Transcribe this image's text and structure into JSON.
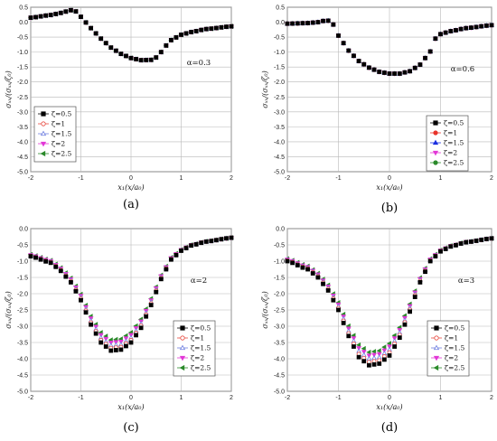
{
  "chart_data": [
    {
      "type": "scatter",
      "panel_label": "(a)",
      "annotation": "α=0.3",
      "xlabel": "x₁(x/a₀)",
      "ylabel": "σₓₓ/(σₓₓ/ζ₀)",
      "xlim": [
        -2,
        2
      ],
      "ylim": [
        -5.0,
        0.5
      ],
      "xticks": [
        "-2",
        "-1",
        "0",
        "1",
        "2"
      ],
      "yticks": [
        "0.5",
        "0.0",
        "-0.5",
        "-1.0",
        "-1.5",
        "-2.0",
        "-2.5",
        "-3.0",
        "-3.5",
        "-4.0",
        "-4.5",
        "-5.0"
      ],
      "grid": true,
      "legend_position": "lower-left",
      "series": [
        {
          "name": "ζ=0.5",
          "color": "#000000",
          "marker": "square",
          "filled": true
        },
        {
          "name": "ζ=1",
          "color": "#e8493f",
          "marker": "circle",
          "filled": false
        },
        {
          "name": "ζ=1.5",
          "color": "#6f7fe0",
          "marker": "triangle-up",
          "filled": false
        },
        {
          "name": "ζ=2",
          "color": "#e236d6",
          "marker": "triangle-down",
          "filled": true
        },
        {
          "name": "ζ=2.5",
          "color": "#2a8a2a",
          "marker": "triangle-left",
          "filled": true
        }
      ],
      "x": [
        -2.0,
        -1.6,
        -1.4,
        -1.2,
        -1.1,
        -1.0,
        -0.8,
        -0.6,
        -0.4,
        -0.2,
        0.0,
        0.2,
        0.4,
        0.5,
        0.6,
        0.7,
        0.8,
        1.0,
        1.2,
        1.5,
        2.0
      ],
      "y": [
        [
          0.15,
          0.24,
          0.31,
          0.4,
          0.36,
          0.18,
          -0.2,
          -0.55,
          -0.85,
          -1.06,
          -1.2,
          -1.27,
          -1.26,
          -1.18,
          -1.0,
          -0.78,
          -0.6,
          -0.42,
          -0.33,
          -0.23,
          -0.14
        ]
      ],
      "series_offsets": [
        0,
        0,
        0,
        0,
        0
      ]
    },
    {
      "type": "scatter",
      "panel_label": "(b)",
      "annotation": "α=0.6",
      "xlabel": "x₁(x/a₀)",
      "ylabel": "σₓₓ/(σₓₓ/ζ₀)",
      "xlim": [
        -2,
        2
      ],
      "ylim": [
        -5.0,
        0.5
      ],
      "xticks": [
        "-2",
        "-1",
        "0",
        "1",
        "2"
      ],
      "yticks": [
        "0.5",
        "0.0",
        "-0.5",
        "-1.0",
        "-1.5",
        "-2.0",
        "-2.5",
        "-3.0",
        "-3.5",
        "-4.0",
        "-4.5",
        "-5.0"
      ],
      "grid": true,
      "legend_position": "lower-right",
      "series": [
        {
          "name": "ζ=0.5",
          "color": "#000000",
          "marker": "square",
          "filled": true
        },
        {
          "name": "ζ=1",
          "color": "#e8332a",
          "marker": "circle",
          "filled": true
        },
        {
          "name": "ζ=1.5",
          "color": "#1a2ee0",
          "marker": "triangle-up",
          "filled": true
        },
        {
          "name": "ζ=2",
          "color": "#e236d6",
          "marker": "triangle-down",
          "filled": true
        },
        {
          "name": "ζ=2.5",
          "color": "#2a8a2a",
          "marker": "circle",
          "filled": true
        }
      ],
      "x": [
        -2.0,
        -1.6,
        -1.4,
        -1.3,
        -1.2,
        -1.1,
        -1.0,
        -0.8,
        -0.6,
        -0.4,
        -0.2,
        0.0,
        0.2,
        0.4,
        0.6,
        0.8,
        0.9,
        1.0,
        1.2,
        1.5,
        2.0
      ],
      "y": [
        [
          -0.05,
          -0.03,
          0.0,
          0.04,
          0.05,
          -0.08,
          -0.45,
          -0.95,
          -1.3,
          -1.52,
          -1.66,
          -1.72,
          -1.72,
          -1.64,
          -1.42,
          -0.98,
          -0.55,
          -0.4,
          -0.3,
          -0.2,
          -0.1
        ]
      ],
      "series_offsets": [
        0,
        0,
        0,
        0,
        0
      ]
    },
    {
      "type": "scatter",
      "panel_label": "(c)",
      "annotation": "α=2",
      "xlabel": "x₁(x/a₀)",
      "ylabel": "σₓₓ/(σₓₓ/ζ₀)",
      "xlim": [
        -2,
        2
      ],
      "ylim": [
        -5.0,
        0.0
      ],
      "xticks": [
        "-2",
        "-1",
        "0",
        "1",
        "2"
      ],
      "yticks": [
        "0.0",
        "-0.5",
        "-1.0",
        "-1.5",
        "-2.0",
        "-2.5",
        "-3.0",
        "-3.5",
        "-4.0",
        "-4.5",
        "-5.0"
      ],
      "grid": true,
      "legend_position": "lower-right",
      "series": [
        {
          "name": "ζ=0.5",
          "color": "#000000",
          "marker": "square",
          "filled": true
        },
        {
          "name": "ζ=1",
          "color": "#e8493f",
          "marker": "circle",
          "filled": false
        },
        {
          "name": "ζ=1.5",
          "color": "#6f7fe0",
          "marker": "triangle-up",
          "filled": false
        },
        {
          "name": "ζ=2",
          "color": "#e236d6",
          "marker": "triangle-down",
          "filled": true
        },
        {
          "name": "ζ=2.5",
          "color": "#2a8a2a",
          "marker": "triangle-left",
          "filled": true
        }
      ],
      "x": [
        -2.0,
        -1.6,
        -1.4,
        -1.2,
        -1.0,
        -0.8,
        -0.6,
        -0.4,
        -0.2,
        0.0,
        0.2,
        0.4,
        0.6,
        0.8,
        1.0,
        1.2,
        1.5,
        2.0
      ],
      "y": [
        [
          -0.85,
          -1.05,
          -1.3,
          -1.65,
          -2.2,
          -2.95,
          -3.5,
          -3.75,
          -3.72,
          -3.5,
          -3.05,
          -2.35,
          -1.55,
          -0.95,
          -0.68,
          -0.52,
          -0.4,
          -0.28
        ]
      ],
      "series_offsets": [
        0,
        0.08,
        0.16,
        0.25,
        0.33
      ]
    },
    {
      "type": "scatter",
      "panel_label": "(d)",
      "annotation": "α=3",
      "xlabel": "x₁(x/a₀)",
      "ylabel": "σₓₓ/(σₓₓ/ζ₀)",
      "xlim": [
        -2,
        2
      ],
      "ylim": [
        -5.0,
        0.0
      ],
      "xticks": [
        "-2",
        "-1",
        "0",
        "1",
        "2"
      ],
      "yticks": [
        "0.0",
        "-0.5",
        "-1.0",
        "-1.5",
        "-2.0",
        "-2.5",
        "-3.0",
        "-3.5",
        "-4.0",
        "-4.5",
        "-5.0"
      ],
      "grid": true,
      "legend_position": "lower-right",
      "series": [
        {
          "name": "ζ=0.5",
          "color": "#000000",
          "marker": "square",
          "filled": true
        },
        {
          "name": "ζ=1",
          "color": "#e8493f",
          "marker": "circle",
          "filled": false
        },
        {
          "name": "ζ=1.5",
          "color": "#6f7fe0",
          "marker": "triangle-up",
          "filled": false
        },
        {
          "name": "ζ=2",
          "color": "#e236d6",
          "marker": "triangle-down",
          "filled": true
        },
        {
          "name": "ζ=2.5",
          "color": "#2a8a2a",
          "marker": "triangle-left",
          "filled": true
        }
      ],
      "x": [
        -2.0,
        -1.6,
        -1.4,
        -1.2,
        -1.0,
        -0.8,
        -0.6,
        -0.4,
        -0.2,
        0.0,
        0.2,
        0.4,
        0.6,
        0.8,
        1.0,
        1.2,
        1.5,
        2.0
      ],
      "y": [
        [
          -1.0,
          -1.25,
          -1.5,
          -1.9,
          -2.5,
          -3.3,
          -3.95,
          -4.2,
          -4.15,
          -3.9,
          -3.35,
          -2.55,
          -1.65,
          -1.0,
          -0.7,
          -0.55,
          -0.42,
          -0.3
        ]
      ],
      "series_offsets": [
        0,
        0.1,
        0.2,
        0.3,
        0.4
      ]
    }
  ]
}
